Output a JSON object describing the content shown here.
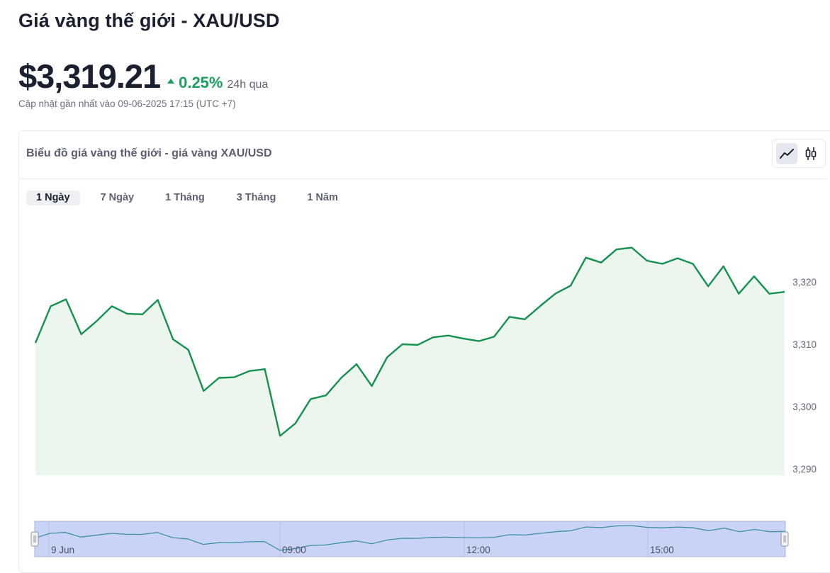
{
  "page": {
    "title": "Giá vàng thế giới - XAU/USD",
    "price": "$3,319.21",
    "change_pct": "0.25%",
    "change_period": "24h qua",
    "updated": "Cập nhật gần nhất vào 09-06-2025 17:15 (UTC +7)"
  },
  "chart_card": {
    "title": "Biểu đồ giá vàng thế giới - giá vàng XAU/USD",
    "toggles": [
      {
        "label": "line-chart",
        "active": true
      },
      {
        "label": "candlestick-chart",
        "active": false
      }
    ],
    "tabs": [
      {
        "label": "1 Ngày",
        "active": true
      },
      {
        "label": "7 Ngày",
        "active": false
      },
      {
        "label": "1 Tháng",
        "active": false
      },
      {
        "label": "3 Tháng",
        "active": false
      },
      {
        "label": "1 Năm",
        "active": false
      }
    ]
  },
  "colors": {
    "line": "#14914d",
    "area": "#ecf6ef",
    "up": "#1aa15e",
    "navigator_fill": "#c9d3f6",
    "navigator_line": "#3d8fa8"
  },
  "chart_data": {
    "type": "area",
    "x_axis": "time",
    "y_tick_labels": [
      "3,320",
      "3,310",
      "3,300",
      "3,290"
    ],
    "y_ticks": [
      3320,
      3310,
      3300,
      3290
    ],
    "ylim": [
      3290,
      3330
    ],
    "values": [
      3310.2,
      3316.1,
      3317.2,
      3311.6,
      3313.7,
      3316.1,
      3314.9,
      3314.8,
      3317.1,
      3310.8,
      3309.1,
      3302.5,
      3304.6,
      3304.7,
      3305.7,
      3306.0,
      3295.3,
      3297.3,
      3301.2,
      3301.8,
      3304.6,
      3306.8,
      3303.3,
      3307.9,
      3310.0,
      3309.9,
      3311.1,
      3311.4,
      3310.9,
      3310.5,
      3311.2,
      3314.4,
      3314.0,
      3316.1,
      3318.1,
      3319.4,
      3323.9,
      3323.1,
      3325.2,
      3325.5,
      3323.4,
      3322.9,
      3323.8,
      3322.9,
      3319.3,
      3322.5,
      3318.1,
      3320.9,
      3318.1,
      3318.4
    ],
    "navigator": {
      "x_labels": [
        "9 Jun",
        "09:00",
        "12:00",
        "15:00"
      ]
    },
    "grid": false,
    "legend": "none"
  }
}
